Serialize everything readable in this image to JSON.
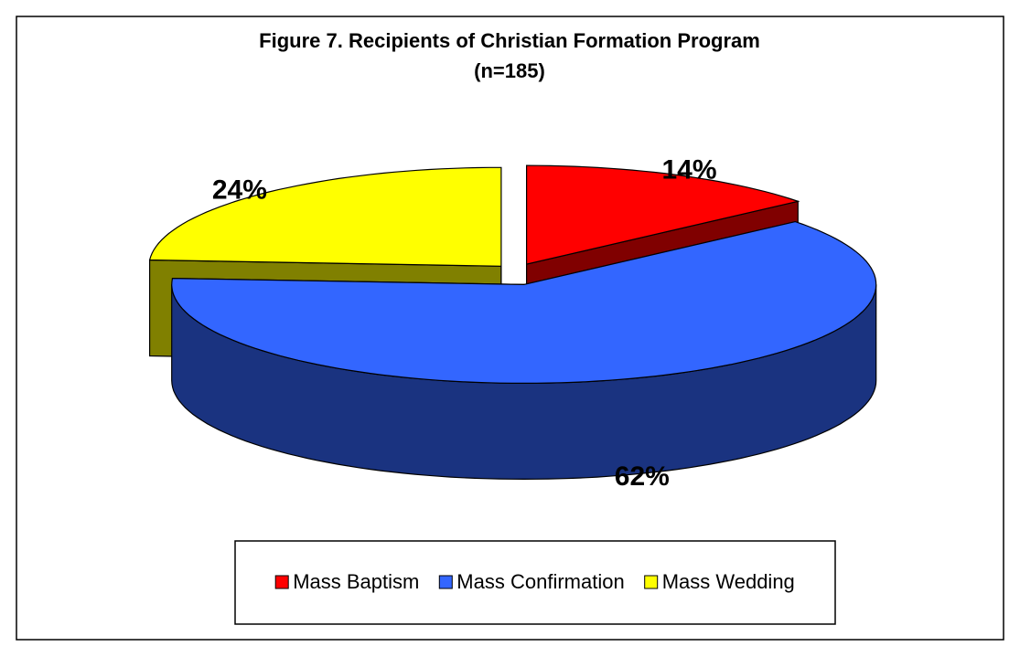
{
  "chart_data": {
    "type": "pie",
    "title": "Figure 7. Recipients of Christian Formation Program",
    "subtitle": "(n=185)",
    "categories": [
      "Mass Baptism",
      "Mass Confirmation",
      "Mass Wedding"
    ],
    "values": [
      14,
      62,
      24
    ],
    "value_labels": [
      "14%",
      "62%",
      "24%"
    ],
    "colors": [
      "#ff0000",
      "#3366ff",
      "#ffff00"
    ],
    "legend": "bottom"
  }
}
